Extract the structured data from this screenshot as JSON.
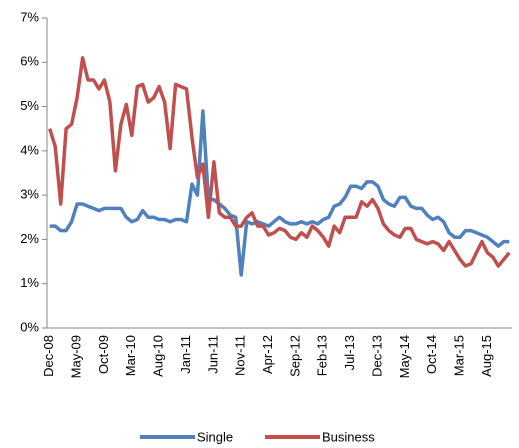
{
  "chart_data": {
    "type": "line",
    "categories": [
      "Dec-08",
      null,
      null,
      null,
      null,
      "May-09",
      null,
      null,
      null,
      null,
      "Oct-09",
      null,
      null,
      null,
      null,
      "Mar-10",
      null,
      null,
      null,
      null,
      "Aug-10",
      null,
      null,
      null,
      null,
      "Jan-11",
      null,
      null,
      null,
      null,
      "Jun-11",
      null,
      null,
      null,
      null,
      "Nov-11",
      null,
      null,
      null,
      null,
      "Apr-12",
      null,
      null,
      null,
      null,
      "Sep-12",
      null,
      null,
      null,
      null,
      "Feb-13",
      null,
      null,
      null,
      null,
      "Jul-13",
      null,
      null,
      null,
      null,
      "Dec-13",
      null,
      null,
      null,
      null,
      "May-14",
      null,
      null,
      null,
      null,
      "Oct-14",
      null,
      null,
      null,
      null,
      "Mar-15",
      null,
      null,
      null,
      null,
      "Aug-15",
      null,
      null,
      null,
      null
    ],
    "series": [
      {
        "name": "Single",
        "color": "#4f81bd",
        "values": [
          2.3,
          2.3,
          2.2,
          2.2,
          2.4,
          2.8,
          2.8,
          2.75,
          2.7,
          2.65,
          2.7,
          2.7,
          2.7,
          2.7,
          2.5,
          2.4,
          2.45,
          2.65,
          2.5,
          2.5,
          2.45,
          2.45,
          2.4,
          2.45,
          2.45,
          2.4,
          3.25,
          3.0,
          4.9,
          2.9,
          2.9,
          2.8,
          2.7,
          2.55,
          2.5,
          1.2,
          2.4,
          2.35,
          2.4,
          2.35,
          2.3,
          2.4,
          2.5,
          2.4,
          2.35,
          2.35,
          2.4,
          2.35,
          2.4,
          2.35,
          2.45,
          2.5,
          2.75,
          2.8,
          2.95,
          3.2,
          3.2,
          3.15,
          3.3,
          3.3,
          3.2,
          2.9,
          2.8,
          2.75,
          2.95,
          2.95,
          2.75,
          2.7,
          2.7,
          2.55,
          2.45,
          2.5,
          2.4,
          2.15,
          2.05,
          2.05,
          2.2,
          2.2,
          2.15,
          2.1,
          2.05,
          1.95,
          1.85,
          1.95,
          1.95
        ]
      },
      {
        "name": "Business",
        "color": "#c0504d",
        "values": [
          4.5,
          4.1,
          2.8,
          4.5,
          4.6,
          5.2,
          6.1,
          5.6,
          5.6,
          5.4,
          5.6,
          5.1,
          3.55,
          4.6,
          5.05,
          4.35,
          5.45,
          5.5,
          5.1,
          5.2,
          5.45,
          5.1,
          4.05,
          5.5,
          5.45,
          5.4,
          4.3,
          3.4,
          3.7,
          2.5,
          3.75,
          2.6,
          2.5,
          2.5,
          2.3,
          2.3,
          2.5,
          2.6,
          2.3,
          2.3,
          2.1,
          2.15,
          2.25,
          2.2,
          2.05,
          2.0,
          2.15,
          2.05,
          2.3,
          2.2,
          2.05,
          1.85,
          2.3,
          2.15,
          2.5,
          2.5,
          2.5,
          2.85,
          2.75,
          2.9,
          2.7,
          2.35,
          2.2,
          2.1,
          2.05,
          2.25,
          2.25,
          2.0,
          1.95,
          1.9,
          1.95,
          1.9,
          1.75,
          1.95,
          1.75,
          1.55,
          1.4,
          1.45,
          1.7,
          1.95,
          1.7,
          1.6,
          1.4,
          1.55,
          1.7
        ]
      }
    ],
    "ylim": [
      0,
      7
    ],
    "yticks": [
      {
        "value": 0,
        "label": "0%"
      },
      {
        "value": 1,
        "label": "1%"
      },
      {
        "value": 2,
        "label": "2%"
      },
      {
        "value": 3,
        "label": "3%"
      },
      {
        "value": 4,
        "label": "4%"
      },
      {
        "value": 5,
        "label": "5%"
      },
      {
        "value": 6,
        "label": "6%"
      },
      {
        "value": 7,
        "label": "7%"
      }
    ],
    "grid": false,
    "legend": "bottom"
  }
}
